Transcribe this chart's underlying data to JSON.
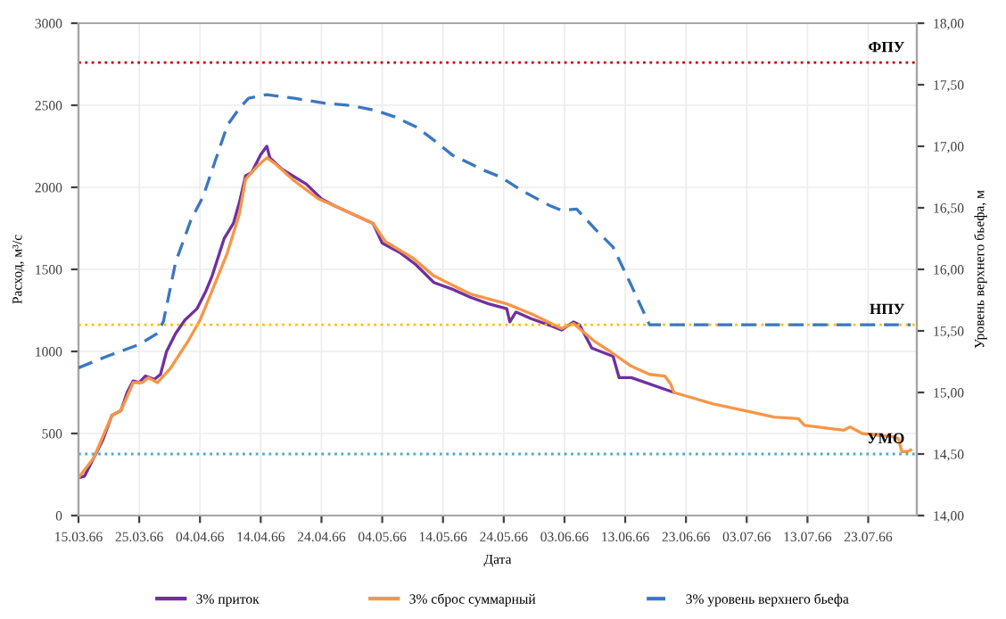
{
  "chart_data": {
    "type": "line",
    "xlabel": "Дата",
    "ylabel": "Расход, м³/с",
    "y2label": "Уровень верхнего бьефа, м",
    "xlim": [
      "1966-03-15",
      "1966-07-31"
    ],
    "xticks": [
      {
        "value": "1966-03-15",
        "label": "15.03.66"
      },
      {
        "value": "1966-03-25",
        "label": "25.03.66"
      },
      {
        "value": "1966-04-04",
        "label": "04.04.66"
      },
      {
        "value": "1966-04-14",
        "label": "14.04.66"
      },
      {
        "value": "1966-04-24",
        "label": "24.04.66"
      },
      {
        "value": "1966-05-04",
        "label": "04.05.66"
      },
      {
        "value": "1966-05-14",
        "label": "14.05.66"
      },
      {
        "value": "1966-05-24",
        "label": "24.05.66"
      },
      {
        "value": "1966-06-03",
        "label": "03.06.66"
      },
      {
        "value": "1966-06-13",
        "label": "13.06.66"
      },
      {
        "value": "1966-06-23",
        "label": "23.06.66"
      },
      {
        "value": "1966-07-03",
        "label": "03.07.66"
      },
      {
        "value": "1966-07-13",
        "label": "13.07.66"
      },
      {
        "value": "1966-07-23",
        "label": "23.07.66"
      }
    ],
    "ylim": [
      0,
      3000
    ],
    "yticks": [
      0,
      500,
      1000,
      1500,
      2000,
      2500,
      3000
    ],
    "y2lim": [
      14,
      18
    ],
    "y2ticks": [
      {
        "value": 14,
        "label": "14,00"
      },
      {
        "value": 14.5,
        "label": "14,50"
      },
      {
        "value": 15,
        "label": "15,00"
      },
      {
        "value": 15.5,
        "label": "15,50"
      },
      {
        "value": 16,
        "label": "16,00"
      },
      {
        "value": 16.5,
        "label": "16,50"
      },
      {
        "value": 17,
        "label": "17,00"
      },
      {
        "value": 17.5,
        "label": "17,50"
      },
      {
        "value": 18,
        "label": "18,00"
      }
    ],
    "grid": true,
    "legend": "bottom",
    "series": [
      {
        "name": "3% приток",
        "color": "#7030a0",
        "line_style": "solid",
        "x": [
          "1966-03-15",
          "1966-03-16",
          "1966-03-17T12:00",
          "1966-03-19",
          "1966-03-20T12:00",
          "1966-03-22",
          "1966-03-23",
          "1966-03-24",
          "1966-03-25",
          "1966-03-26",
          "1966-03-27T12:00",
          "1966-03-28T12:00",
          "1966-03-29T12:00",
          "1966-03-31",
          "1966-04-01T12:00",
          "1966-04-03T12:00",
          "1966-04-05",
          "1966-04-06",
          "1966-04-08",
          "1966-04-09T12:00",
          "1966-04-10T12:00",
          "1966-04-11T12:00",
          "1966-04-12T12:00",
          "1966-04-14",
          "1966-04-15",
          "1966-04-15T12:00",
          "1966-04-17T12:00",
          "1966-04-21T12:00",
          "1966-04-24",
          "1966-04-26",
          "1966-05-02T12:00",
          "1966-05-04",
          "1966-05-07",
          "1966-05-09T12:00",
          "1966-05-12T12:00",
          "1966-05-15T12:00",
          "1966-05-18T12:00",
          "1966-05-21T12:00",
          "1966-05-24T12:00",
          "1966-05-25",
          "1966-05-26",
          "1966-05-28T12:00",
          "1966-05-31T12:00",
          "1966-06-02T12:00",
          "1966-06-04T12:00",
          "1966-06-05T12:00",
          "1966-06-07T12:00",
          "1966-06-11",
          "1966-06-12",
          "1966-06-14",
          "1966-06-21"
        ],
        "values": [
          230,
          240,
          350,
          460,
          610,
          640,
          750,
          820,
          810,
          850,
          830,
          860,
          1000,
          1110,
          1190,
          1260,
          1370,
          1460,
          1690,
          1780,
          1910,
          2070,
          2090,
          2200,
          2250,
          2180,
          2110,
          2020,
          1930,
          1890,
          1780,
          1660,
          1600,
          1530,
          1420,
          1380,
          1330,
          1290,
          1260,
          1180,
          1240,
          1200,
          1160,
          1130,
          1180,
          1160,
          1020,
          970,
          840,
          840,
          750
        ]
      },
      {
        "name": "3% сброс суммарный",
        "color": "#f79646",
        "line_style": "solid",
        "x": [
          "1966-03-15",
          "1966-03-17T12:00",
          "1966-03-20T12:00",
          "1966-03-22",
          "1966-03-24",
          "1966-03-25T12:00",
          "1966-03-26T12:00",
          "1966-03-28",
          "1966-03-30",
          "1966-04-02",
          "1966-04-04",
          "1966-04-06",
          "1966-04-08T12:00",
          "1966-04-10T12:00",
          "1966-04-11T12:00",
          "1966-04-13T12:00",
          "1966-04-15",
          "1966-04-16T12:00",
          "1966-04-19T12:00",
          "1966-04-23T12:00",
          "1966-04-26",
          "1966-05-02T12:00",
          "1966-05-04T12:00",
          "1966-05-09",
          "1966-05-12T12:00",
          "1966-05-18T12:00",
          "1966-05-24T12:00",
          "1966-05-28T12:00",
          "1966-06-02T12:00",
          "1966-06-04T12:00",
          "1966-06-08",
          "1966-06-10T12:00",
          "1966-06-14",
          "1966-06-17",
          "1966-06-19T12:00",
          "1966-06-20T12:00",
          "1966-06-21",
          "1966-06-27T12:00",
          "1966-07-02T12:00",
          "1966-07-07T12:00",
          "1966-07-11T12:00",
          "1966-07-12T12:00",
          "1966-07-19",
          "1966-07-20",
          "1966-07-22",
          "1966-07-27",
          "1966-07-28",
          "1966-07-28T12:00",
          "1966-07-29T12:00",
          "1966-07-30"
        ],
        "values": [
          230,
          350,
          610,
          640,
          810,
          810,
          840,
          810,
          890,
          1060,
          1190,
          1370,
          1600,
          1840,
          2050,
          2130,
          2180,
          2140,
          2040,
          1930,
          1890,
          1780,
          1670,
          1570,
          1460,
          1350,
          1290,
          1230,
          1140,
          1170,
          1060,
          1000,
          910,
          860,
          850,
          800,
          750,
          680,
          640,
          600,
          590,
          550,
          520,
          540,
          500,
          480,
          470,
          390,
          390,
          400
        ]
      },
      {
        "name": "3% уровень верхнего бьефа",
        "color": "#3a78c2",
        "line_style": "dashed",
        "axis": "y2",
        "x": [
          "1966-03-15",
          "1966-03-19T12:00",
          "1966-03-25",
          "1966-03-28",
          "1966-03-29",
          "1966-03-31",
          "1966-04-02T12:00",
          "1966-04-04T12:00",
          "1966-04-06T12:00",
          "1966-04-08T12:00",
          "1966-04-10T12:00",
          "1966-04-12",
          "1966-04-15",
          "1966-04-19T12:00",
          "1966-04-24T12:00",
          "1966-04-29",
          "1966-05-03",
          "1966-05-06",
          "1966-05-09T12:00",
          "1966-05-12T12:00",
          "1966-05-15T12:00",
          "1966-05-20T12:00",
          "1966-05-23T12:00",
          "1966-05-27",
          "1966-05-31T12:00",
          "1966-06-02T12:00",
          "1966-06-05",
          "1966-06-08",
          "1966-06-11",
          "1966-06-14",
          "1966-06-17",
          "1966-07-30"
        ],
        "values": [
          15.2,
          15.29,
          15.39,
          15.48,
          15.58,
          16.06,
          16.4,
          16.59,
          16.88,
          17.17,
          17.31,
          17.39,
          17.42,
          17.39,
          17.35,
          17.33,
          17.29,
          17.24,
          17.16,
          17.05,
          16.93,
          16.81,
          16.75,
          16.64,
          16.52,
          16.48,
          16.49,
          16.33,
          16.18,
          15.87,
          15.55,
          15.55
        ]
      }
    ],
    "ref_lines": [
      {
        "axis": "y2",
        "value": 17.68,
        "label": "ФПУ",
        "color": "#c00000",
        "line_style": "dotted"
      },
      {
        "axis": "y2",
        "value": 15.55,
        "label": "НПУ",
        "color": "#ffc000",
        "line_style": "dotted"
      },
      {
        "axis": "y2",
        "value": 14.5,
        "label": "УМО",
        "color": "#4bacc6",
        "line_style": "dotted"
      }
    ]
  }
}
